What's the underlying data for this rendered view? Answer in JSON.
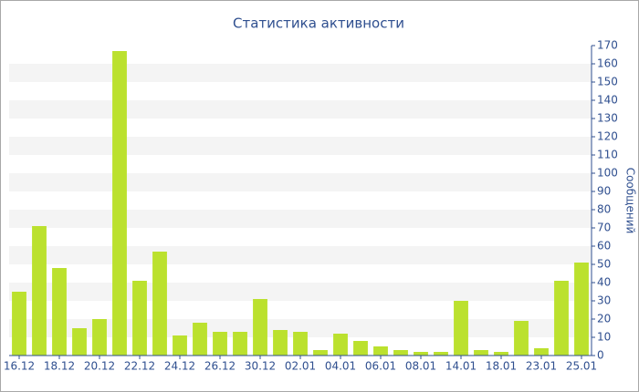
{
  "chart_data": {
    "type": "bar",
    "title": "Статистика активности",
    "y_axis_label": "Сообщений",
    "categories": [
      "16.12",
      null,
      "18.12",
      null,
      "20.12",
      null,
      "22.12",
      null,
      "24.12",
      null,
      "26.12",
      null,
      "30.12",
      null,
      "02.01",
      null,
      "04.01",
      null,
      "06.01",
      null,
      "08.01",
      null,
      "14.01",
      null,
      "18.01",
      null,
      "23.01",
      null,
      "25.01"
    ],
    "values": [
      35,
      71,
      48,
      15,
      20,
      167,
      41,
      57,
      11,
      18,
      13,
      13,
      31,
      14,
      13,
      3,
      12,
      8,
      5,
      3,
      2,
      2,
      30,
      3,
      2,
      19,
      4,
      41,
      51
    ],
    "color": "#bbe12e",
    "ylim": [
      0,
      170
    ],
    "yticks": [
      0,
      10,
      20,
      30,
      40,
      50,
      60,
      70,
      80,
      90,
      100,
      110,
      120,
      130,
      140,
      150,
      160,
      170
    ],
    "grid": true
  }
}
